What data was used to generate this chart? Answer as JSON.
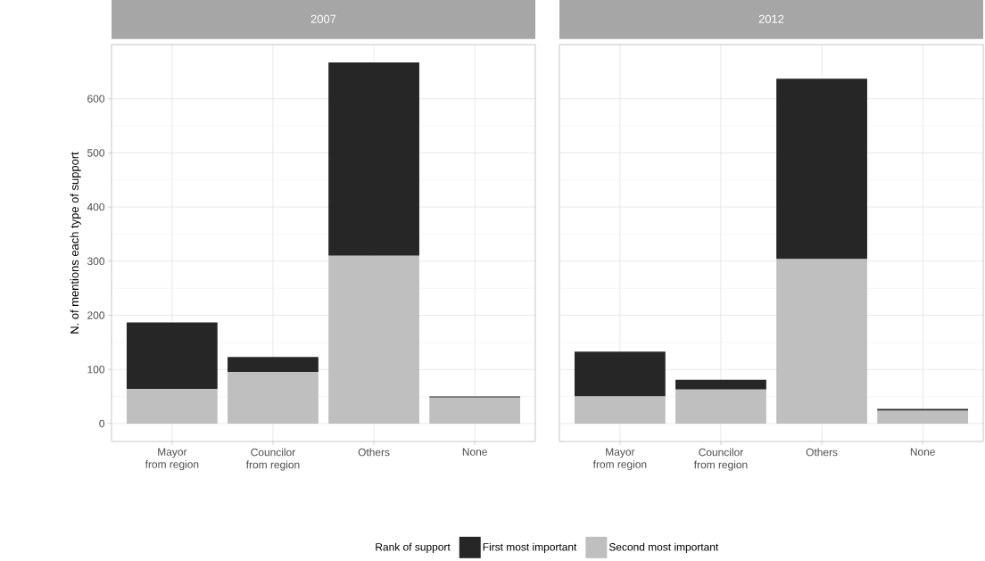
{
  "chart_data": [
    {
      "type": "bar",
      "title": "2007",
      "ylabel": "N. of mentions each type of support",
      "categories": [
        "Mayor from region",
        "Councilor from region",
        "Others",
        "None"
      ],
      "stacked": true,
      "series": [
        {
          "name": "Second most important",
          "color": "#bfbfbf",
          "values": [
            64,
            95,
            310,
            48
          ]
        },
        {
          "name": "First most important",
          "color": "#262626",
          "values": [
            123,
            28,
            357,
            2
          ]
        }
      ],
      "ylim": [
        -33,
        700
      ],
      "yticks": [
        0,
        100,
        200,
        300,
        400,
        500,
        600
      ],
      "grid": true,
      "legend": "bottom",
      "legend_title": "Rank of support"
    },
    {
      "type": "bar",
      "title": "2012",
      "categories": [
        "Mayor from region",
        "Councilor from region",
        "Others",
        "None"
      ],
      "stacked": true,
      "series": [
        {
          "color": "#bfbfbf",
          "values": [
            50,
            63,
            304,
            24
          ]
        },
        {
          "color": "#262626",
          "values": [
            83,
            18,
            333,
            3
          ]
        }
      ],
      "ylim": [
        -33,
        700
      ],
      "yticks": [
        0,
        100,
        200,
        300,
        400,
        500,
        600
      ],
      "grid": true,
      "tick_labels": "x"
    }
  ]
}
